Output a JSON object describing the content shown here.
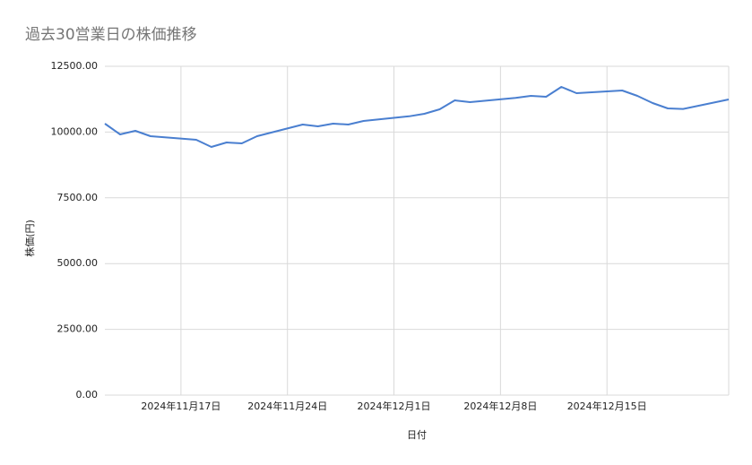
{
  "chart_data": {
    "type": "line",
    "title": "過去30営業日の株価推移",
    "x_label": "日付",
    "y_label": "株価(円)",
    "x": [
      "2024-11-12",
      "2024-11-13",
      "2024-11-14",
      "2024-11-15",
      "2024-11-18",
      "2024-11-19",
      "2024-11-20",
      "2024-11-21",
      "2024-11-22",
      "2024-11-25",
      "2024-11-26",
      "2024-11-27",
      "2024-11-28",
      "2024-11-29",
      "2024-12-02",
      "2024-12-03",
      "2024-12-04",
      "2024-12-05",
      "2024-12-06",
      "2024-12-09",
      "2024-12-10",
      "2024-12-11",
      "2024-12-12",
      "2024-12-13",
      "2024-12-16",
      "2024-12-17",
      "2024-12-18",
      "2024-12-19",
      "2024-12-20",
      "2024-12-23"
    ],
    "series": [
      {
        "name": "株価",
        "color": "#4a7fd0",
        "values": [
          10320,
          9911,
          10048,
          9843,
          9707,
          9435,
          9605,
          9571,
          9843,
          10286,
          10218,
          10320,
          10286,
          10422,
          10600,
          10695,
          10865,
          11206,
          11138,
          11300,
          11376,
          11342,
          11717,
          11478,
          11580,
          11376,
          11104,
          10899,
          10880,
          11240
        ]
      }
    ],
    "xlim": [
      "2024-11-12",
      "2024-12-23"
    ],
    "xticks": [
      {
        "value": "2024-11-17",
        "label": "2024年11月17日"
      },
      {
        "value": "2024-11-24",
        "label": "2024年11月24日"
      },
      {
        "value": "2024-12-01",
        "label": "2024年12月1日"
      },
      {
        "value": "2024-12-08",
        "label": "2024年12月8日"
      },
      {
        "value": "2024-12-15",
        "label": "2024年12月15日"
      }
    ],
    "ylim": [
      0,
      12500
    ],
    "yticks": [
      {
        "value": 0,
        "label": "0.00"
      },
      {
        "value": 2500,
        "label": "2500.00"
      },
      {
        "value": 5000,
        "label": "5000.00"
      },
      {
        "value": 7500,
        "label": "7500.00"
      },
      {
        "value": 10000,
        "label": "10000.00"
      },
      {
        "value": 12500,
        "label": "12500.00"
      }
    ],
    "grid": true
  }
}
